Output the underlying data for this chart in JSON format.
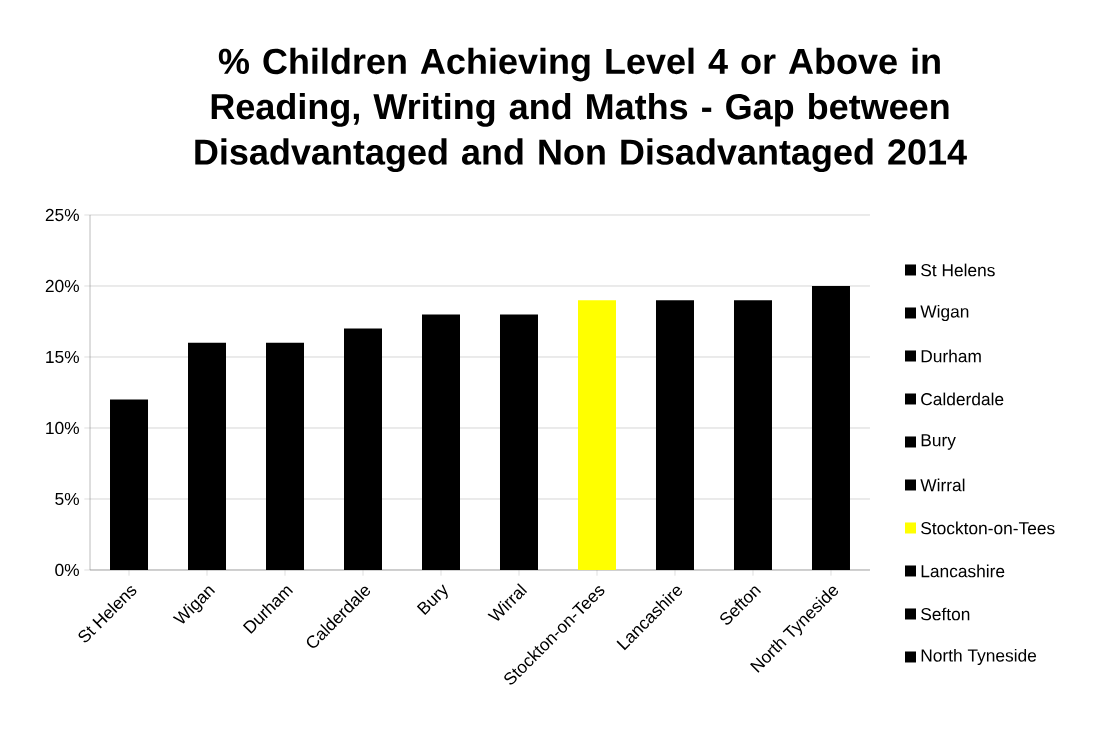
{
  "chart_data": {
    "type": "bar",
    "title": "% Children Achieving Level 4 or Above in Reading, Writing and Maths - Gap between Disadvantaged and Non Disadvantaged 2014",
    "categories": [
      "St Helens",
      "Wigan",
      "Durham",
      "Calderdale",
      "Bury",
      "Wirral",
      "Stockton-on-Tees",
      "Lancashire",
      "Sefton",
      "North Tyneside"
    ],
    "values": [
      12,
      16,
      16,
      17,
      18,
      18,
      19,
      19,
      19,
      20
    ],
    "colors": [
      "#000000",
      "#000000",
      "#000000",
      "#000000",
      "#000000",
      "#000000",
      "#ffff00",
      "#000000",
      "#000000",
      "#000000"
    ],
    "ylim": [
      0,
      25
    ],
    "yticks": [
      {
        "value": 0,
        "label": "0%"
      },
      {
        "value": 5,
        "label": "5%"
      },
      {
        "value": 10,
        "label": "10%"
      },
      {
        "value": 15,
        "label": "15%"
      },
      {
        "value": 20,
        "label": "20%"
      },
      {
        "value": 25,
        "label": "25%"
      }
    ],
    "grid": "y"
  }
}
